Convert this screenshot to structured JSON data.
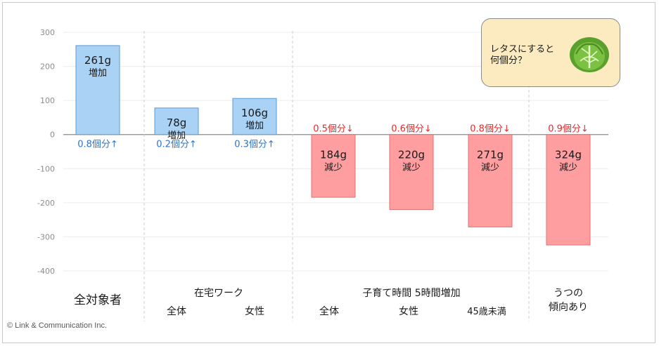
{
  "chart_data": {
    "type": "bar",
    "ylim": [
      -400,
      300
    ],
    "yticks": [
      300,
      200,
      100,
      0,
      -100,
      -200,
      -300,
      -400
    ],
    "grid": true,
    "bars": [
      {
        "value": 261,
        "label": "261g",
        "sublabel": "増加",
        "note": "0.8個分↑"
      },
      {
        "value": 78,
        "label": "78g",
        "sublabel": "増加",
        "note": "0.2個分↑"
      },
      {
        "value": 106,
        "label": "106g",
        "sublabel": "増加",
        "note": "0.3個分↑"
      },
      {
        "value": -184,
        "label": "184g",
        "sublabel": "減少",
        "note": "0.5個分↓"
      },
      {
        "value": -220,
        "label": "220g",
        "sublabel": "減少",
        "note": "0.6個分↓"
      },
      {
        "value": -271,
        "label": "271g",
        "sublabel": "減少",
        "note": "0.8個分↓"
      },
      {
        "value": -324,
        "label": "324g",
        "sublabel": "減少",
        "note": "0.9個分↓"
      }
    ],
    "groups": [
      {
        "label": "全対象者",
        "subcategories": []
      },
      {
        "label": "在宅ワーク",
        "subcategories": [
          "全体",
          "女性"
        ]
      },
      {
        "label": "子育て時間 5時間増加",
        "subcategories": [
          "全体",
          "女性",
          "45歳未満"
        ]
      },
      {
        "label": "うつの",
        "label2": "傾向あり",
        "subcategories": []
      }
    ],
    "colors": {
      "positive": "#a9d2f5",
      "positive_border": "#5b9bd5",
      "negative": "#ff9ea0",
      "negative_border": "#e07070",
      "note_positive": "#2f74c8",
      "note_negative": "#e62a2a"
    }
  },
  "callout": {
    "line1": "レタスにすると",
    "line2": "何個分？",
    "icon": "lettuce-icon"
  },
  "copyright": "© Link & Communication Inc."
}
